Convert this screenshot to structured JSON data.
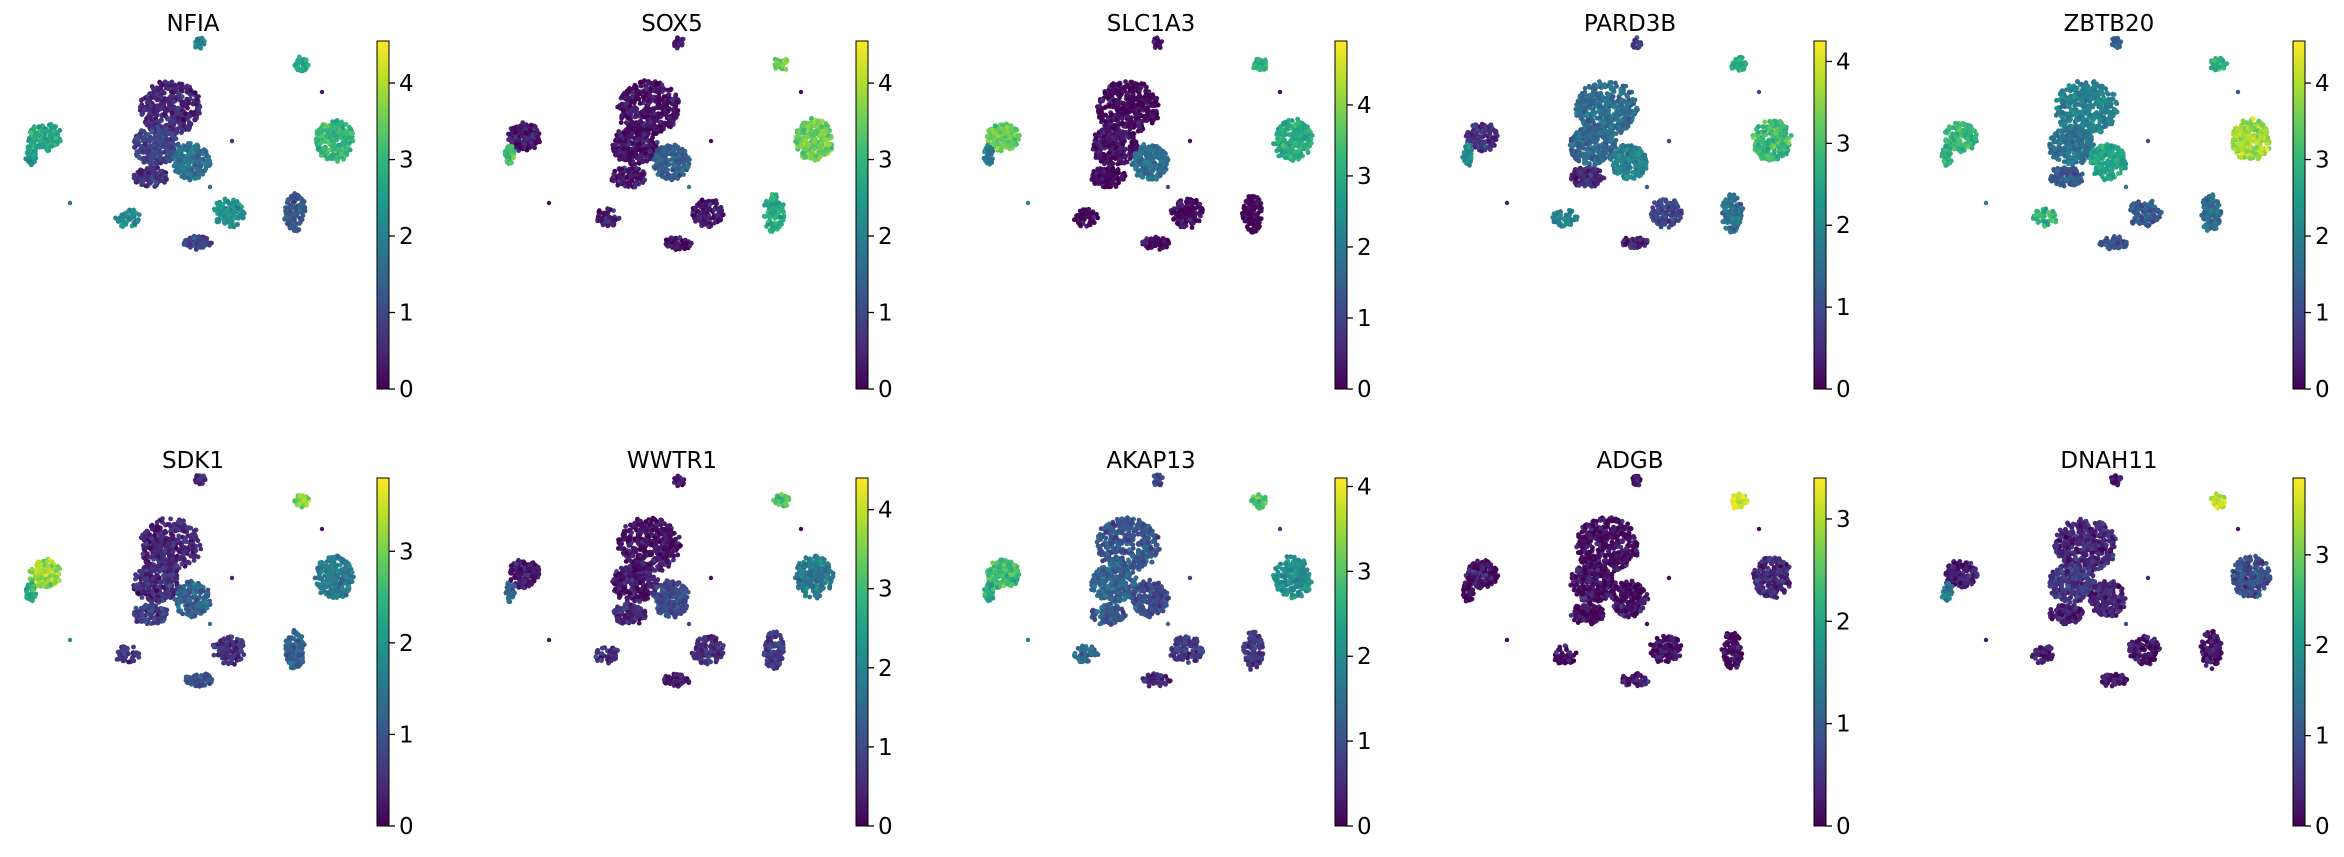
{
  "figure": {
    "colormap": "viridis"
  },
  "chart_data": [
    {
      "type": "scatter",
      "title": "NFIA",
      "xlabel": "",
      "ylabel": "",
      "colorbar": {
        "range": [
          0,
          4.55
        ],
        "ticks": [
          0,
          1,
          2,
          3,
          4
        ]
      },
      "cluster_levels": [
        2.7,
        2.5,
        0.5,
        0.9,
        1.7,
        0.6,
        3.0,
        2.3,
        0.9,
        1.2,
        2.2,
        2.0,
        2.6
      ]
    },
    {
      "type": "scatter",
      "title": "SOX5",
      "xlabel": "",
      "ylabel": "",
      "colorbar": {
        "range": [
          0,
          4.55
        ],
        "ticks": [
          0,
          1,
          2,
          3,
          4
        ]
      },
      "cluster_levels": [
        0.3,
        3.2,
        0.2,
        0.2,
        1.4,
        0.3,
        3.5,
        0.3,
        0.2,
        2.8,
        0.3,
        0.3,
        3.6
      ]
    },
    {
      "type": "scatter",
      "title": "SLC1A3",
      "xlabel": "",
      "ylabel": "",
      "colorbar": {
        "range": [
          0,
          4.9
        ],
        "ticks": [
          0,
          1,
          2,
          3,
          4
        ]
      },
      "cluster_levels": [
        3.7,
        2.0,
        0.1,
        0.2,
        1.8,
        0.1,
        3.0,
        0.1,
        0.1,
        0.1,
        0.1,
        0.1,
        3.2
      ]
    },
    {
      "type": "scatter",
      "title": "PARD3B",
      "xlabel": "",
      "ylabel": "",
      "colorbar": {
        "range": [
          0,
          4.25
        ],
        "ticks": [
          0,
          1,
          2,
          3,
          4
        ]
      },
      "cluster_levels": [
        0.6,
        2.0,
        1.5,
        1.4,
        1.9,
        0.5,
        2.9,
        0.9,
        0.4,
        1.6,
        1.8,
        0.7,
        2.6
      ]
    },
    {
      "type": "scatter",
      "title": "ZBTB20",
      "xlabel": "",
      "ylabel": "",
      "colorbar": {
        "range": [
          0,
          4.55
        ],
        "ticks": [
          0,
          1,
          2,
          3,
          4
        ]
      },
      "cluster_levels": [
        3.0,
        2.9,
        2.0,
        1.7,
        2.7,
        1.3,
        3.9,
        1.3,
        1.1,
        1.6,
        3.0,
        1.4,
        2.8
      ]
    },
    {
      "type": "scatter",
      "title": "SDK1",
      "xlabel": "",
      "ylabel": "",
      "colorbar": {
        "range": [
          0,
          3.8
        ],
        "ticks": [
          0,
          1,
          2,
          3
        ]
      },
      "cluster_levels": [
        3.2,
        2.3,
        0.4,
        0.5,
        1.2,
        0.7,
        1.6,
        0.5,
        1.0,
        1.2,
        0.5,
        0.5,
        3.1
      ]
    },
    {
      "type": "scatter",
      "title": "WWTR1",
      "xlabel": "",
      "ylabel": "",
      "colorbar": {
        "range": [
          0,
          4.4
        ],
        "ticks": [
          0,
          1,
          2,
          3,
          4
        ]
      },
      "cluster_levels": [
        0.3,
        1.4,
        0.2,
        0.3,
        1.0,
        0.5,
        1.8,
        0.6,
        0.3,
        0.7,
        0.6,
        0.3,
        3.2
      ]
    },
    {
      "type": "scatter",
      "title": "AKAP13",
      "xlabel": "",
      "ylabel": "",
      "colorbar": {
        "range": [
          0,
          4.1
        ],
        "ticks": [
          0,
          1,
          2,
          3,
          4
        ]
      },
      "cluster_levels": [
        2.8,
        2.4,
        1.1,
        1.3,
        1.0,
        1.1,
        2.1,
        0.6,
        0.5,
        0.7,
        1.4,
        0.8,
        3.0
      ]
    },
    {
      "type": "scatter",
      "title": "ADGB",
      "xlabel": "",
      "ylabel": "",
      "colorbar": {
        "range": [
          0,
          3.4
        ],
        "ticks": [
          0,
          1,
          2,
          3
        ]
      },
      "cluster_levels": [
        0.1,
        0.1,
        0.1,
        0.1,
        0.1,
        0.1,
        0.4,
        0.1,
        0.1,
        0.1,
        0.1,
        0.1,
        3.2
      ]
    },
    {
      "type": "scatter",
      "title": "DNAH11",
      "xlabel": "",
      "ylabel": "",
      "colorbar": {
        "range": [
          0,
          3.85
        ],
        "ticks": [
          0,
          1,
          2,
          3
        ]
      },
      "cluster_levels": [
        0.3,
        1.6,
        0.4,
        0.6,
        0.4,
        0.3,
        0.9,
        0.2,
        0.2,
        0.2,
        0.3,
        0.2,
        3.4
      ]
    }
  ]
}
